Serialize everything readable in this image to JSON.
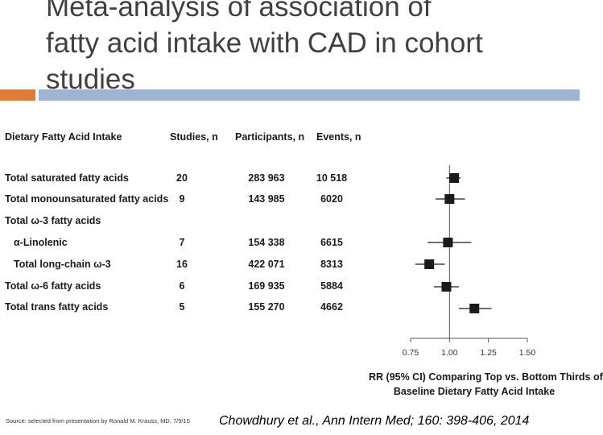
{
  "slide": {
    "title_lines": [
      "Meta-analysis of association of",
      "fatty acid intake with CAD in cohort",
      "studies"
    ],
    "source_note": "Source: selected from presentation by Ronald M. Krauss, MD, 7/9/15",
    "citation": "Chowdhury et al., Ann Intern Med; 160: 398-406, 2014",
    "colors": {
      "title": "#404040",
      "accent_orange": "#e07b39",
      "accent_blue": "#9fb4d3",
      "marker": "#1a1a1a"
    }
  },
  "table": {
    "headers": {
      "name": "Dietary Fatty Acid Intake",
      "studies": "Studies, n",
      "participants": "Participants, n",
      "events": "Events, n"
    },
    "rows": [
      {
        "name": "Total saturated fatty acids",
        "studies": "20",
        "participants": "283 963",
        "events": "10 518"
      },
      {
        "name": "Total monounsaturated fatty acids",
        "studies": "9",
        "participants": "143 985",
        "events": "6020"
      },
      {
        "name": "Total ω-3 fatty acids",
        "studies": "",
        "participants": "",
        "events": ""
      },
      {
        "name": "α-Linolenic",
        "studies": "7",
        "participants": "154 338",
        "events": "6615"
      },
      {
        "name": "Total long-chain ω-3",
        "studies": "16",
        "participants": "422 071",
        "events": "8313"
      },
      {
        "name": "Total ω-6 fatty acids",
        "studies": "6",
        "participants": "169 935",
        "events": "5884"
      },
      {
        "name": "Total trans fatty acids",
        "studies": "5",
        "participants": "155 270",
        "events": "4662"
      }
    ]
  },
  "chart_data": {
    "type": "forest",
    "title": "Meta-analysis of association of fatty acid intake with CAD in cohort studies",
    "xlabel": "RR (95% CI) Comparing Top vs. Bottom Thirds of Baseline Dietary Fatty Acid Intake",
    "x_ticks": [
      "0.75",
      "1.00",
      "1.25",
      "1.50"
    ],
    "xlim": [
      0.75,
      1.5
    ],
    "reference_line": 1.0,
    "points": [
      {
        "label": "Total saturated fatty acids",
        "rr": 1.03,
        "ci": [
          0.98,
          1.07
        ]
      },
      {
        "label": "Total monounsaturated fatty acids",
        "rr": 1.0,
        "ci": [
          0.91,
          1.1
        ]
      },
      {
        "label": "Total ω-3 fatty acids",
        "rr": null,
        "ci": null
      },
      {
        "label": "α-Linolenic",
        "rr": 0.99,
        "ci": [
          0.86,
          1.14
        ]
      },
      {
        "label": "Total long-chain ω-3",
        "rr": 0.87,
        "ci": [
          0.78,
          0.97
        ]
      },
      {
        "label": "Total ω-6 fatty acids",
        "rr": 0.98,
        "ci": [
          0.9,
          1.06
        ]
      },
      {
        "label": "Total trans fatty acids",
        "rr": 1.16,
        "ci": [
          1.06,
          1.27
        ]
      }
    ]
  }
}
